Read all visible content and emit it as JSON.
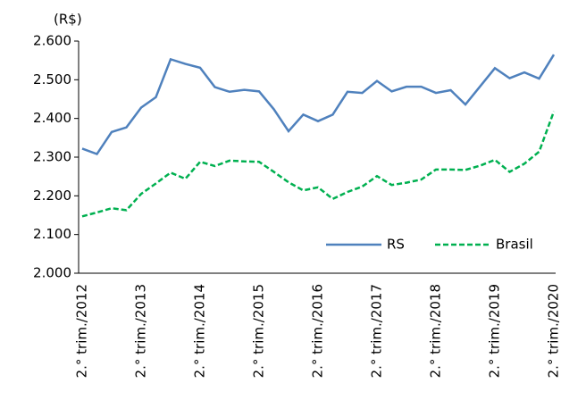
{
  "chart_data": {
    "type": "line",
    "y_label": "(R$)",
    "categories": [
      "2.° trim./2012",
      null,
      null,
      null,
      "2.° trim./2013",
      null,
      null,
      null,
      "2.° trim./2014",
      null,
      null,
      null,
      "2.° trim./2015",
      null,
      null,
      null,
      "2.° trim./2016",
      null,
      null,
      null,
      "2.° trim./2017",
      null,
      null,
      null,
      "2.° trim./2018",
      null,
      null,
      null,
      "2.° trim./2019",
      null,
      null,
      null,
      "2.° trim./2020"
    ],
    "series": [
      {
        "name": "RS",
        "color": "#4f81bd",
        "dashed": false,
        "values": [
          2322,
          2308,
          2365,
          2377,
          2428,
          2455,
          2553,
          2541,
          2531,
          2481,
          2469,
          2474,
          2470,
          2424,
          2367,
          2410,
          2393,
          2410,
          2469,
          2466,
          2497,
          2470,
          2482,
          2482,
          2466,
          2473,
          2436,
          2483,
          2530,
          2504,
          2519,
          2503,
          2565
        ]
      },
      {
        "name": "Brasil",
        "color": "#00b050",
        "dashed": true,
        "values": [
          2147,
          2157,
          2168,
          2163,
          2205,
          2232,
          2260,
          2244,
          2288,
          2277,
          2291,
          2289,
          2288,
          2262,
          2235,
          2214,
          2222,
          2192,
          2210,
          2224,
          2251,
          2228,
          2234,
          2242,
          2268,
          2268,
          2267,
          2278,
          2293,
          2262,
          2283,
          2314,
          2418
        ]
      }
    ],
    "ylim": [
      2000,
      2600
    ],
    "yticks": [
      {
        "value": 2000,
        "label": "2.000"
      },
      {
        "value": 2100,
        "label": "2.100"
      },
      {
        "value": 2200,
        "label": "2.200"
      },
      {
        "value": 2300,
        "label": "2.300"
      },
      {
        "value": 2400,
        "label": "2.400"
      },
      {
        "value": 2500,
        "label": "2.500"
      },
      {
        "value": 2600,
        "label": "2.600"
      }
    ],
    "legend": "lower right"
  }
}
